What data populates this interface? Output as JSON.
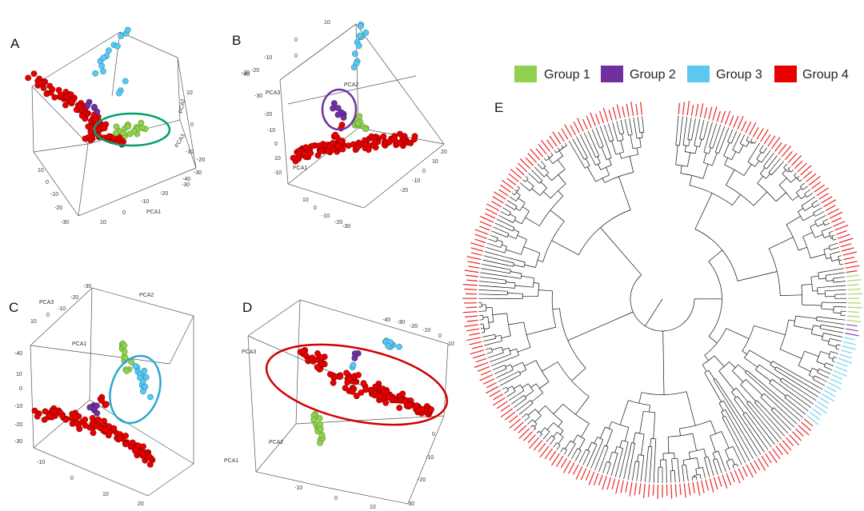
{
  "figure": {
    "legend": [
      {
        "label": "Group 1",
        "color": "#92d050"
      },
      {
        "label": "Group 2",
        "color": "#7030a0"
      },
      {
        "label": "Group 3",
        "color": "#5bc8f0"
      },
      {
        "label": "Group 4",
        "color": "#e80000"
      }
    ]
  },
  "chart_data": [
    {
      "type": "scatter",
      "panel": "A",
      "title": "A",
      "axes": [
        "PCA1",
        "PCA2",
        "PCA3"
      ],
      "tick_labels": [
        "10",
        "0",
        "-10",
        "-20",
        "-30",
        "-30",
        "-20",
        "-10",
        "0",
        "10",
        "10",
        "0",
        "-10",
        "-20",
        "-30",
        "-40"
      ],
      "highlight": "Group 1 (green ellipse)"
    },
    {
      "type": "scatter",
      "panel": "B",
      "title": "B",
      "axes": [
        "PCA1",
        "PCA2",
        "PCA3"
      ],
      "tick_labels": [
        "10",
        "0",
        "-10",
        "-20",
        "-30",
        "-40",
        "0",
        "-10",
        "10",
        "0",
        "-10",
        "-20",
        "-30",
        "-20",
        "-10",
        "0",
        "10",
        "-30",
        "-20",
        "-10",
        "0",
        "10",
        "20"
      ],
      "highlight": "Group 2 (purple ellipse)"
    },
    {
      "type": "scatter",
      "panel": "C",
      "title": "C",
      "axes": [
        "PCA1",
        "PCA2",
        "PCA3"
      ],
      "tick_labels": [
        "-30",
        "-20",
        "-10",
        "0",
        "10",
        "10",
        "0",
        "-10",
        "-20",
        "-30",
        "-40",
        "-10",
        "0",
        "10",
        "20"
      ],
      "highlight": "Group 3 (blue ellipse)"
    },
    {
      "type": "scatter",
      "panel": "D",
      "title": "D",
      "axes": [
        "PCA1",
        "PCA2",
        "PCA3"
      ],
      "tick_labels": [
        "-40",
        "-30",
        "-20",
        "-10",
        "0",
        "10",
        "-10",
        "0",
        "10",
        "0",
        "-10",
        "-20",
        "-30"
      ],
      "highlight": "Group 4 (red ellipse)"
    },
    {
      "type": "dendrogram",
      "panel": "E",
      "title": "E",
      "layout": "circular",
      "group_order_clockwise_from_top": [
        "Group 4",
        "Group 1",
        "Group 2",
        "Group 3",
        "Group 4"
      ]
    }
  ]
}
